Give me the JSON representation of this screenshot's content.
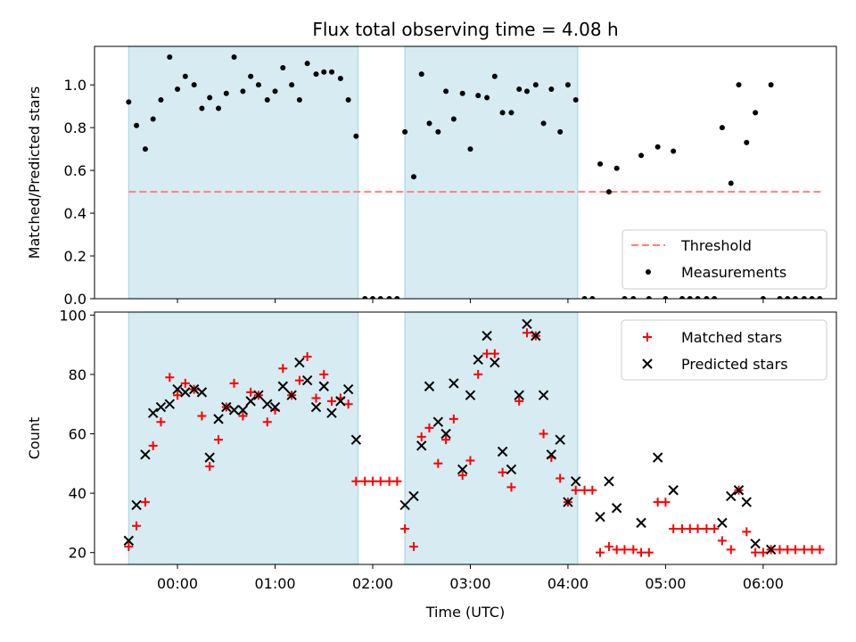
{
  "chart_data": [
    {
      "type": "scatter",
      "title": "Flux total observing time = 4.08 h",
      "xlabel": "",
      "ylabel": "Matched/Predicted stars",
      "ylim": [
        0,
        1.18
      ],
      "yticks": [
        "0.0",
        "0.2",
        "0.4",
        "0.6",
        "0.8",
        "1.0"
      ],
      "xlim": [
        -0.85,
        6.75
      ],
      "threshold": {
        "name": "Threshold",
        "value": 0.5,
        "x_range": [
          -0.5,
          6.6
        ],
        "color": "#ff7f7f"
      },
      "shaded_intervals": [
        [
          -0.5,
          1.85
        ],
        [
          2.33,
          4.1
        ]
      ],
      "shade_color": "#add8e6",
      "legend": {
        "position": "lower right",
        "entries": [
          "Threshold",
          "Measurements"
        ]
      },
      "series": [
        {
          "name": "Measurements",
          "color": "#000000",
          "marker": "dot",
          "points": [
            [
              -0.5,
              0.92
            ],
            [
              -0.42,
              0.81
            ],
            [
              -0.33,
              0.7
            ],
            [
              -0.25,
              0.84
            ],
            [
              -0.17,
              0.93
            ],
            [
              -0.08,
              1.13
            ],
            [
              0.0,
              0.98
            ],
            [
              0.08,
              1.04
            ],
            [
              0.17,
              1.0
            ],
            [
              0.25,
              0.89
            ],
            [
              0.33,
              0.94
            ],
            [
              0.42,
              0.89
            ],
            [
              0.5,
              0.96
            ],
            [
              0.58,
              1.13
            ],
            [
              0.67,
              0.97
            ],
            [
              0.75,
              1.04
            ],
            [
              0.83,
              1.0
            ],
            [
              0.92,
              0.93
            ],
            [
              1.0,
              0.97
            ],
            [
              1.08,
              1.08
            ],
            [
              1.17,
              1.0
            ],
            [
              1.25,
              0.93
            ],
            [
              1.33,
              1.1
            ],
            [
              1.42,
              1.05
            ],
            [
              1.5,
              1.06
            ],
            [
              1.58,
              1.06
            ],
            [
              1.67,
              1.03
            ],
            [
              1.75,
              0.93
            ],
            [
              1.83,
              0.76
            ],
            [
              1.92,
              0.0
            ],
            [
              2.0,
              0.0
            ],
            [
              2.08,
              0.0
            ],
            [
              2.17,
              0.0
            ],
            [
              2.25,
              0.0
            ],
            [
              2.33,
              0.78
            ],
            [
              2.42,
              0.57
            ],
            [
              2.5,
              1.05
            ],
            [
              2.58,
              0.82
            ],
            [
              2.67,
              0.78
            ],
            [
              2.75,
              0.97
            ],
            [
              2.83,
              0.84
            ],
            [
              2.92,
              0.96
            ],
            [
              3.0,
              0.7
            ],
            [
              3.08,
              0.95
            ],
            [
              3.17,
              0.94
            ],
            [
              3.25,
              1.04
            ],
            [
              3.33,
              0.87
            ],
            [
              3.42,
              0.87
            ],
            [
              3.5,
              0.98
            ],
            [
              3.58,
              0.97
            ],
            [
              3.67,
              1.0
            ],
            [
              3.75,
              0.82
            ],
            [
              3.83,
              0.98
            ],
            [
              3.92,
              0.78
            ],
            [
              4.0,
              1.0
            ],
            [
              4.08,
              0.93
            ],
            [
              4.17,
              0.0
            ],
            [
              4.25,
              0.0
            ],
            [
              4.33,
              0.63
            ],
            [
              4.42,
              0.5
            ],
            [
              4.5,
              0.61
            ],
            [
              4.58,
              0.0
            ],
            [
              4.67,
              0.0
            ],
            [
              4.75,
              0.67
            ],
            [
              4.83,
              0.0
            ],
            [
              4.92,
              0.71
            ],
            [
              5.0,
              0.0
            ],
            [
              5.08,
              0.69
            ],
            [
              5.17,
              0.0
            ],
            [
              5.25,
              0.0
            ],
            [
              5.33,
              0.0
            ],
            [
              5.42,
              0.0
            ],
            [
              5.5,
              0.0
            ],
            [
              5.58,
              0.8
            ],
            [
              5.67,
              0.54
            ],
            [
              5.75,
              1.0
            ],
            [
              5.83,
              0.73
            ],
            [
              5.92,
              0.87
            ],
            [
              6.0,
              0.0
            ],
            [
              6.08,
              1.0
            ],
            [
              6.17,
              0.0
            ],
            [
              6.25,
              0.0
            ],
            [
              6.33,
              0.0
            ],
            [
              6.42,
              0.0
            ],
            [
              6.5,
              0.0
            ],
            [
              6.58,
              0.0
            ]
          ]
        }
      ]
    },
    {
      "type": "scatter",
      "title": "",
      "xlabel": "Time (UTC)",
      "ylabel": "Count",
      "ylim": [
        16,
        101
      ],
      "yticks": [
        "20",
        "40",
        "60",
        "80",
        "100"
      ],
      "xlim": [
        -0.85,
        6.75
      ],
      "xticks": [
        "00:00",
        "01:00",
        "02:00",
        "03:00",
        "04:00",
        "05:00",
        "06:00"
      ],
      "shaded_intervals": [
        [
          -0.5,
          1.85
        ],
        [
          2.33,
          4.1
        ]
      ],
      "shade_color": "#add8e6",
      "legend": {
        "position": "top-right",
        "entries": [
          "Matched stars",
          "Predicted stars"
        ]
      },
      "series": [
        {
          "name": "Matched stars",
          "color": "#ff0000",
          "marker": "plus",
          "points": [
            [
              -0.5,
              22
            ],
            [
              -0.42,
              29
            ],
            [
              -0.33,
              37
            ],
            [
              -0.25,
              56
            ],
            [
              -0.17,
              64
            ],
            [
              -0.08,
              79
            ],
            [
              0.0,
              73
            ],
            [
              0.08,
              77
            ],
            [
              0.17,
              75
            ],
            [
              0.25,
              66
            ],
            [
              0.33,
              49
            ],
            [
              0.42,
              58
            ],
            [
              0.5,
              69
            ],
            [
              0.58,
              77
            ],
            [
              0.67,
              66
            ],
            [
              0.75,
              74
            ],
            [
              0.83,
              73
            ],
            [
              0.92,
              64
            ],
            [
              1.0,
              68
            ],
            [
              1.08,
              82
            ],
            [
              1.17,
              73
            ],
            [
              1.25,
              78
            ],
            [
              1.33,
              86
            ],
            [
              1.42,
              72
            ],
            [
              1.5,
              80
            ],
            [
              1.58,
              71
            ],
            [
              1.67,
              72
            ],
            [
              1.75,
              70
            ],
            [
              1.83,
              44
            ],
            [
              1.92,
              44
            ],
            [
              2.0,
              44
            ],
            [
              2.08,
              44
            ],
            [
              2.17,
              44
            ],
            [
              2.25,
              44
            ],
            [
              2.33,
              28
            ],
            [
              2.42,
              22
            ],
            [
              2.5,
              59
            ],
            [
              2.58,
              62
            ],
            [
              2.67,
              50
            ],
            [
              2.75,
              58
            ],
            [
              2.83,
              65
            ],
            [
              2.92,
              46
            ],
            [
              3.0,
              51
            ],
            [
              3.08,
              80
            ],
            [
              3.17,
              87
            ],
            [
              3.25,
              87
            ],
            [
              3.33,
              47
            ],
            [
              3.42,
              42
            ],
            [
              3.5,
              71
            ],
            [
              3.58,
              94
            ],
            [
              3.67,
              93
            ],
            [
              3.75,
              60
            ],
            [
              3.83,
              52
            ],
            [
              3.92,
              45
            ],
            [
              4.0,
              37
            ],
            [
              4.08,
              41
            ],
            [
              4.17,
              41
            ],
            [
              4.25,
              41
            ],
            [
              4.33,
              20
            ],
            [
              4.42,
              22
            ],
            [
              4.5,
              21
            ],
            [
              4.58,
              21
            ],
            [
              4.67,
              21
            ],
            [
              4.75,
              20
            ],
            [
              4.83,
              20
            ],
            [
              4.92,
              37
            ],
            [
              5.0,
              37
            ],
            [
              5.08,
              28
            ],
            [
              5.17,
              28
            ],
            [
              5.25,
              28
            ],
            [
              5.33,
              28
            ],
            [
              5.42,
              28
            ],
            [
              5.5,
              28
            ],
            [
              5.58,
              24
            ],
            [
              5.67,
              21
            ],
            [
              5.75,
              41
            ],
            [
              5.83,
              27
            ],
            [
              5.92,
              20
            ],
            [
              6.0,
              20
            ],
            [
              6.08,
              21
            ],
            [
              6.17,
              21
            ],
            [
              6.25,
              21
            ],
            [
              6.33,
              21
            ],
            [
              6.42,
              21
            ],
            [
              6.5,
              21
            ],
            [
              6.58,
              21
            ]
          ]
        },
        {
          "name": "Predicted stars",
          "color": "#000000",
          "marker": "x",
          "points": [
            [
              -0.5,
              24
            ],
            [
              -0.42,
              36
            ],
            [
              -0.33,
              53
            ],
            [
              -0.25,
              67
            ],
            [
              -0.17,
              69
            ],
            [
              -0.08,
              70
            ],
            [
              0.0,
              75
            ],
            [
              0.08,
              74
            ],
            [
              0.17,
              75
            ],
            [
              0.25,
              74
            ],
            [
              0.33,
              52
            ],
            [
              0.42,
              65
            ],
            [
              0.5,
              69
            ],
            [
              0.58,
              68
            ],
            [
              0.67,
              68
            ],
            [
              0.75,
              71
            ],
            [
              0.83,
              73
            ],
            [
              0.92,
              70
            ],
            [
              1.0,
              69
            ],
            [
              1.08,
              76
            ],
            [
              1.17,
              73
            ],
            [
              1.25,
              84
            ],
            [
              1.33,
              78
            ],
            [
              1.42,
              69
            ],
            [
              1.5,
              76
            ],
            [
              1.58,
              67
            ],
            [
              1.67,
              71
            ],
            [
              1.75,
              75
            ],
            [
              1.83,
              58
            ],
            [
              2.33,
              36
            ],
            [
              2.42,
              39
            ],
            [
              2.5,
              56
            ],
            [
              2.58,
              76
            ],
            [
              2.67,
              64
            ],
            [
              2.75,
              60
            ],
            [
              2.83,
              77
            ],
            [
              2.92,
              48
            ],
            [
              3.0,
              73
            ],
            [
              3.08,
              85
            ],
            [
              3.17,
              93
            ],
            [
              3.25,
              84
            ],
            [
              3.33,
              54
            ],
            [
              3.42,
              48
            ],
            [
              3.5,
              73
            ],
            [
              3.58,
              97
            ],
            [
              3.67,
              93
            ],
            [
              3.75,
              73
            ],
            [
              3.83,
              53
            ],
            [
              3.92,
              58
            ],
            [
              4.0,
              37
            ],
            [
              4.08,
              44
            ],
            [
              4.33,
              32
            ],
            [
              4.42,
              44
            ],
            [
              4.5,
              35
            ],
            [
              4.75,
              30
            ],
            [
              4.92,
              52
            ],
            [
              5.08,
              41
            ],
            [
              5.58,
              30
            ],
            [
              5.67,
              39
            ],
            [
              5.75,
              41
            ],
            [
              5.83,
              37
            ],
            [
              5.92,
              23
            ],
            [
              6.08,
              21
            ]
          ]
        }
      ]
    }
  ]
}
